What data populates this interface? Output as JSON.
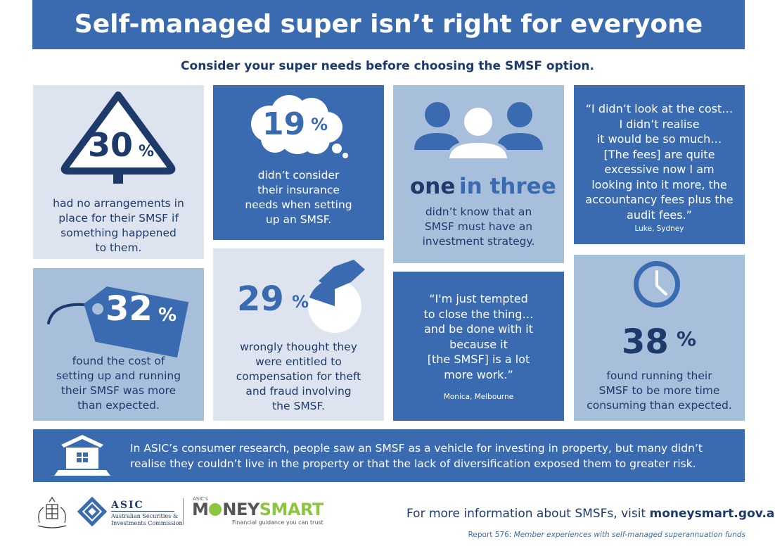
{
  "header": {
    "title": "Self-managed super isn’t right for everyone",
    "subtitle": "Consider your super needs before choosing the SMSF option."
  },
  "stats": {
    "s30": {
      "number": "30",
      "unit": "%",
      "lines": [
        "had no arrangements in",
        "place for their SMSF if",
        "something happened",
        "to them."
      ]
    },
    "s19": {
      "number": "19",
      "unit": "%",
      "lines": [
        "didn’t consider",
        "their insurance",
        "needs when setting",
        "up an SMSF."
      ]
    },
    "one_in_three": {
      "word1": "one",
      "word2": "in three",
      "lines": [
        "didn’t know that an",
        "SMSF must have an",
        "investment strategy."
      ]
    },
    "s32": {
      "number": "32",
      "unit": "%",
      "lines": [
        "found the cost of",
        "setting up and running",
        "their SMSF was more",
        "than expected."
      ]
    },
    "s29": {
      "number": "29",
      "unit": "%",
      "lines": [
        "wrongly thought they",
        "were entitled to",
        "compensation for theft",
        "and fraud involving",
        "the SMSF."
      ]
    },
    "s38": {
      "number": "38",
      "unit": "%",
      "lines": [
        "found running their",
        "SMSF to be more time",
        "consuming than expected."
      ]
    }
  },
  "quotes": {
    "luke": {
      "lines": [
        "“I didn’t look at the cost…",
        "I didn’t realise",
        "it would be so much…",
        "[The fees] are quite",
        "excessive now I am",
        "looking into it more, the",
        "accountancy fees plus the",
        "audit fees.”"
      ],
      "attribution": "Luke, Sydney"
    },
    "monica": {
      "lines": [
        "“I'm just tempted",
        "to close the thing…",
        "and be done with it",
        "because it",
        "[the SMSF] is a lot",
        "more work.”"
      ],
      "attribution": "Monica, Melbourne"
    }
  },
  "property_note": {
    "lines": [
      "In ASIC’s consumer research, people saw an SMSF as a vehicle for investing in property, but many didn’t",
      "realise they couldn’t live in the property or that the lack of diversification exposed them to greater risk."
    ]
  },
  "footer": {
    "asic": {
      "name": "ASIC",
      "line1": "Australian Securities &",
      "line2": "Investments Commission"
    },
    "moneysmart": {
      "prefix": "ASIC's",
      "name_a": "M",
      "name_b": "NEY",
      "name_c": "SMART",
      "tagline": "Financial guidance you can trust"
    },
    "info_prefix": "For more information about SMSFs, visit ",
    "info_link": "moneysmart.gov.au",
    "report_prefix": "Report 576: ",
    "report_title": "Member experiences with self-managed superannuation funds"
  },
  "colors": {
    "dark_blue": "#3a6bb0",
    "navy": "#1d3a6b",
    "mid_blue": "#a8bfdc",
    "light_blue": "#dde4ef",
    "green": "#8cc63f"
  },
  "icons": [
    "warning-sign-icon",
    "thought-bubble-icon",
    "people-group-icon",
    "price-tag-icon",
    "pie-hand-icon",
    "clock-icon",
    "house-icon",
    "coat-of-arms-icon",
    "asic-logo-icon"
  ]
}
